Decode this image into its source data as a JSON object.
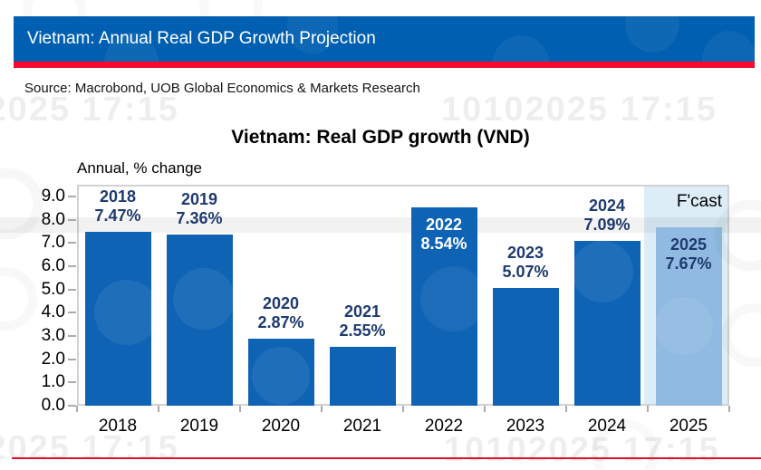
{
  "header": {
    "title": "Vietnam: Annual Real GDP Growth Projection"
  },
  "source_line": "Source: Macrobond, UOB Global Economics & Markets Research",
  "watermark": {
    "text": "10102025 17:15"
  },
  "chart": {
    "title": "Vietnam: Real GDP growth (VND)",
    "axis_unit_label": "Annual, % change"
  },
  "chart_data": {
    "type": "bar",
    "title": "Vietnam: Real GDP growth (VND)",
    "ylabel": "Annual, % change",
    "xlabel": "",
    "categories": [
      "2018",
      "2019",
      "2020",
      "2021",
      "2022",
      "2023",
      "2024",
      "2025"
    ],
    "values": [
      7.47,
      7.36,
      2.87,
      2.55,
      8.54,
      5.07,
      7.09,
      7.67
    ],
    "bar_labels": [
      {
        "year": "2018",
        "value_label": "7.47%",
        "placement": "above",
        "text_color": "navy",
        "forecast": false
      },
      {
        "year": "2019",
        "value_label": "7.36%",
        "placement": "above",
        "text_color": "navy",
        "forecast": false
      },
      {
        "year": "2020",
        "value_label": "2.87%",
        "placement": "above",
        "text_color": "navy",
        "forecast": false
      },
      {
        "year": "2021",
        "value_label": "2.55%",
        "placement": "above",
        "text_color": "navy",
        "forecast": false
      },
      {
        "year": "2022",
        "value_label": "8.54%",
        "placement": "inside",
        "text_color": "white",
        "forecast": false
      },
      {
        "year": "2023",
        "value_label": "5.07%",
        "placement": "above",
        "text_color": "navy",
        "forecast": false
      },
      {
        "year": "2024",
        "value_label": "7.09%",
        "placement": "above",
        "text_color": "navy",
        "forecast": false
      },
      {
        "year": "2025",
        "value_label": "7.67%",
        "placement": "inside",
        "text_color": "navy",
        "forecast": true
      }
    ],
    "y_ticks": [
      "9.0",
      "8.0",
      "7.0",
      "6.0",
      "5.0",
      "4.0",
      "3.0",
      "2.0",
      "1.0",
      "0.0"
    ],
    "ylim": [
      0,
      9.4
    ],
    "grid": false,
    "legend": "none",
    "forecast_region": {
      "category": "2025",
      "label": "F'cast"
    }
  },
  "colors": {
    "header_blue": "#005FB0",
    "accent_red": "#F5092F",
    "bottom_line_red": "#E01031",
    "bar_blue": "#0F63B5",
    "forecast_bar_blue": "#90BAE1",
    "forecast_band": "#DCEDF7",
    "label_navy": "#1E3A6F",
    "label_on_bar_white": "#FFFFFF"
  }
}
